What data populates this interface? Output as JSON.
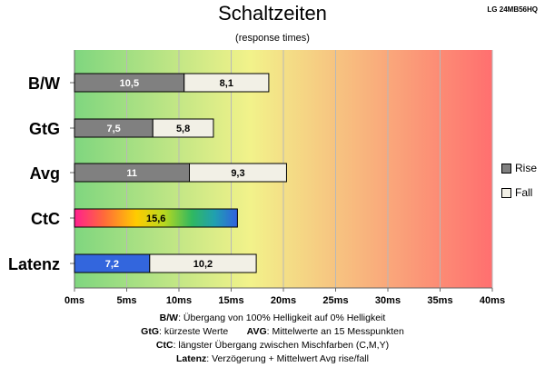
{
  "header": {
    "title": "Schaltzeiten",
    "subtitle": "(response times)",
    "model": "LG 24MB56HQ"
  },
  "chart_data": {
    "type": "bar",
    "orientation": "horizontal",
    "stacked": true,
    "categories": [
      "B/W",
      "GtG",
      "Avg",
      "CtC",
      "Latenz"
    ],
    "series": [
      {
        "name": "Rise",
        "color": "#808080",
        "values": [
          10.5,
          7.5,
          11,
          null,
          null
        ],
        "labels": [
          "10,5",
          "7,5",
          "11",
          "",
          ""
        ]
      },
      {
        "name": "Fall",
        "color": "#f2f0e6",
        "values": [
          8.1,
          5.8,
          9.3,
          null,
          10.2
        ],
        "labels": [
          "8,1",
          "5,8",
          "9,3",
          "",
          "10,2"
        ]
      }
    ],
    "special_bars": [
      {
        "category": "CtC",
        "value": 15.6,
        "label": "15,6",
        "fill": "rainbow"
      },
      {
        "category": "Latenz",
        "value": 7.2,
        "label": "7,2",
        "fill": "#3366dd"
      }
    ],
    "xlim": [
      0,
      40
    ],
    "xticks": [
      0,
      5,
      10,
      15,
      20,
      25,
      30,
      35,
      40
    ],
    "xtick_labels": [
      "0ms",
      "5ms",
      "10ms",
      "15ms",
      "20ms",
      "25ms",
      "30ms",
      "35ms",
      "40ms"
    ],
    "grid": true,
    "background_gradient": [
      "#7fd67f",
      "#f2f28a",
      "#ff6f6f"
    ],
    "legend": {
      "position": "right",
      "items": [
        "Rise",
        "Fall"
      ]
    }
  },
  "notes": [
    {
      "bold": "B/W",
      "text": ":  Übergang von 100% Helligkeit auf 0% Helligkeit"
    },
    {
      "bold": "GtG",
      "text": ": kürzeste  Werte",
      "bold2": "AVG",
      "text2": ": Mittelwerte  an 15 Messpunkten"
    },
    {
      "bold": "CtC",
      "text": ": längster Übergang  zwischen Mischfarben (C,M,Y)"
    },
    {
      "bold": "Latenz",
      "text": ": Verzögerung  + Mittelwert Avg rise/fall"
    }
  ]
}
